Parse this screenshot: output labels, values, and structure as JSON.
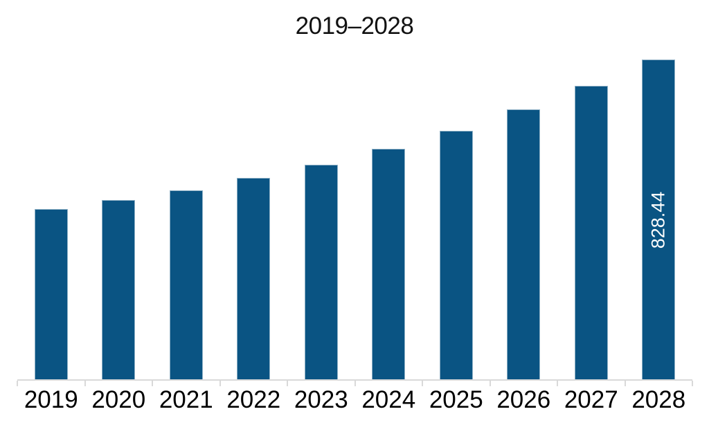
{
  "colors": {
    "background": "#FFFFFF",
    "bar": "#0A5483",
    "bar_border": "#8FB1C6",
    "axis": "#D9D9D9",
    "title_text": "#111111",
    "label_text": "#000000",
    "bar_label_text": "#FFFFFF"
  },
  "chart_data": {
    "type": "bar",
    "title": "2019–2028",
    "subtitle": "",
    "xlabel": "",
    "ylabel": "",
    "categories": [
      "2019",
      "2020",
      "2021",
      "2022",
      "2023",
      "2024",
      "2025",
      "2026",
      "2027",
      "2028"
    ],
    "values": [
      441,
      464,
      490,
      521,
      555,
      597,
      643,
      699,
      760,
      828.44
    ],
    "values_note": "only the 2028 bar is labeled on the chart (828.44); other values estimated from bar heights",
    "ylim": [
      0,
      840
    ],
    "grid": false,
    "legend": false,
    "y_axis_shown": false,
    "x_axis_shown": true,
    "bar_color": "#0A5483",
    "value_label": {
      "text": "828.44",
      "category": "2028",
      "rotation": -90,
      "position": "inside-middle",
      "color": "#FFFFFF"
    }
  }
}
